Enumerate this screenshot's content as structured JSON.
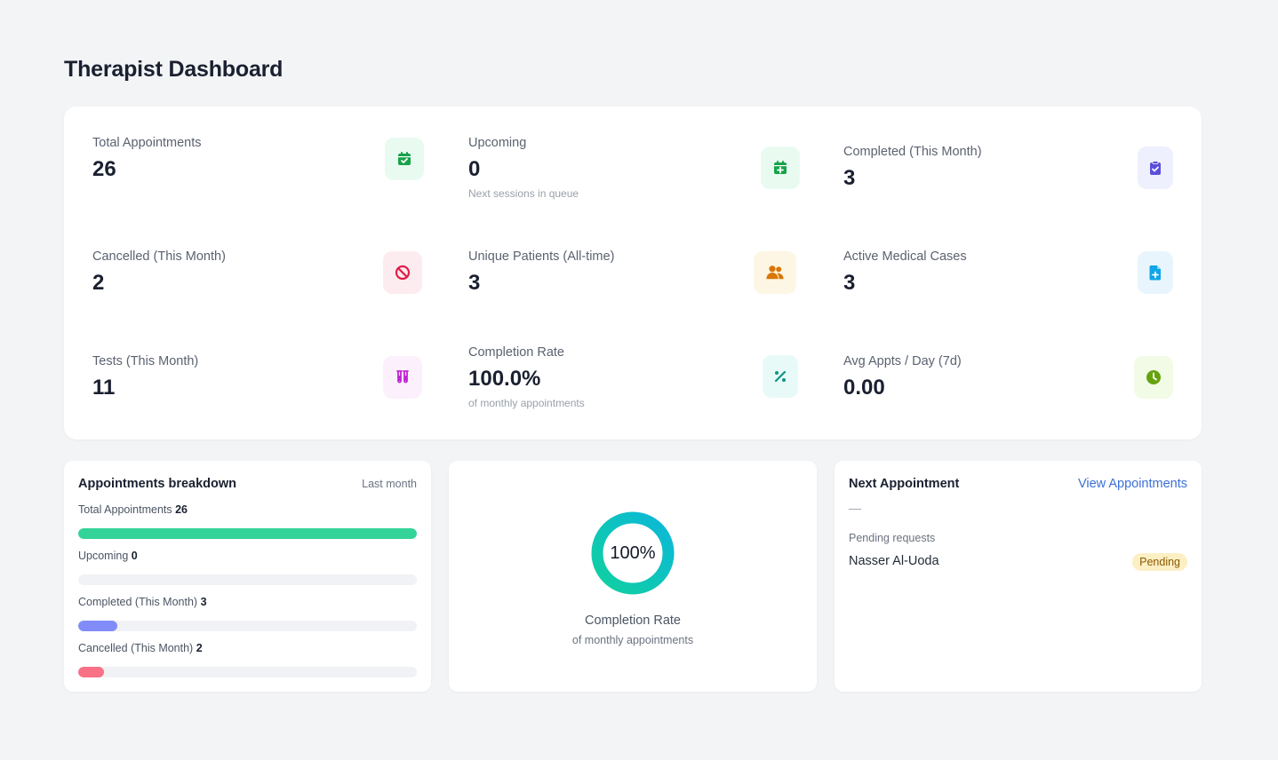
{
  "page": {
    "title": "Therapist Dashboard"
  },
  "stats": [
    {
      "label": "Total Appointments",
      "value": "26",
      "sub": "",
      "icon": "calendar-check-icon",
      "icon_color": "#16a34a",
      "icon_bg": "#e9fbf1"
    },
    {
      "label": "Upcoming",
      "value": "0",
      "sub": "Next sessions in queue",
      "icon": "calendar-plus-icon",
      "icon_color": "#16a34a",
      "icon_bg": "#e9fbf1"
    },
    {
      "label": "Completed (This Month)",
      "value": "3",
      "sub": "",
      "icon": "clipboard-check-icon",
      "icon_color": "#5b4fd9",
      "icon_bg": "#eef0fd"
    },
    {
      "label": "Cancelled (This Month)",
      "value": "2",
      "sub": "",
      "icon": "ban-icon",
      "icon_color": "#e11d48",
      "icon_bg": "#fdecef"
    },
    {
      "label": "Unique Patients (All-time)",
      "value": "3",
      "sub": "",
      "icon": "users-icon",
      "icon_color": "#d97706",
      "icon_bg": "#fef6e4"
    },
    {
      "label": "Active Medical Cases",
      "value": "3",
      "sub": "",
      "icon": "file-medical-icon",
      "icon_color": "#0ea5e9",
      "icon_bg": "#e8f5fd"
    },
    {
      "label": "Tests (This Month)",
      "value": "11",
      "sub": "",
      "icon": "test-tubes-icon",
      "icon_color": "#c026d3",
      "icon_bg": "#fcf0fd"
    },
    {
      "label": "Completion Rate",
      "value": "100.0%",
      "sub": "of monthly appointments",
      "icon": "percent-icon",
      "icon_color": "#0d9488",
      "icon_bg": "#e8faf7"
    },
    {
      "label": "Avg Appts / Day (7d)",
      "value": "0.00",
      "sub": "",
      "icon": "clock-icon",
      "icon_color": "#65a30d",
      "icon_bg": "#f1fbe6"
    }
  ],
  "breakdown": {
    "title": "Appointments breakdown",
    "period": "Last month",
    "bars": [
      {
        "label": "Total Appointments",
        "value": "26",
        "fraction": 1.0,
        "color": "#34d399"
      },
      {
        "label": "Upcoming",
        "value": "0",
        "fraction": 0.0,
        "color": "#34d399"
      },
      {
        "label": "Completed (This Month)",
        "value": "3",
        "fraction": 0.1154,
        "color": "#818cf8"
      },
      {
        "label": "Cancelled (This Month)",
        "value": "2",
        "fraction": 0.0769,
        "color": "#f87185"
      }
    ]
  },
  "completion": {
    "percent_text": "100%",
    "percent": 100,
    "caption": "Completion Rate",
    "sub": "of monthly appointments",
    "gradient_start": "#10d0a0",
    "gradient_end": "#0bb8d8"
  },
  "next_appointment": {
    "title": "Next Appointment",
    "link": "View Appointments",
    "placeholder": "—",
    "pending_label": "Pending requests",
    "pending_name": "Nasser Al-Uoda",
    "badge": "Pending"
  }
}
